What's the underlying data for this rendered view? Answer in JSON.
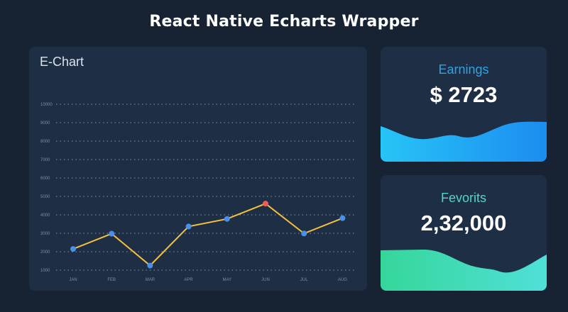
{
  "header": {
    "title": "React Native Echarts Wrapper"
  },
  "chart_panel": {
    "title": "E-Chart"
  },
  "chart_data": {
    "type": "line",
    "categories": [
      "JAN",
      "FEB",
      "MAR",
      "APR",
      "MAY",
      "JUN",
      "JUL",
      "AUG"
    ],
    "values": [
      2150,
      2980,
      1250,
      3370,
      3780,
      4610,
      2990,
      3820
    ],
    "highlight_index": 5,
    "ylim": [
      1000,
      10000
    ],
    "yticks": [
      1000,
      2000,
      3000,
      4000,
      5000,
      6000,
      7000,
      8000,
      9000,
      10000
    ],
    "grid": true,
    "line_color": "#f4c13d",
    "point_color": "#4a90e8",
    "highlight_color": "#ee5d52"
  },
  "cards": {
    "earnings": {
      "label": "Earnings",
      "value": "$ 2723",
      "label_color": "#2aa6e8",
      "wave_colors": [
        "#27c4f6",
        "#1c8df0"
      ]
    },
    "fevorits": {
      "label": "Fevorits",
      "value": "2,32,000",
      "label_color": "#4ed9c0",
      "wave_colors": [
        "#36d69a",
        "#4fe0d8"
      ]
    }
  }
}
